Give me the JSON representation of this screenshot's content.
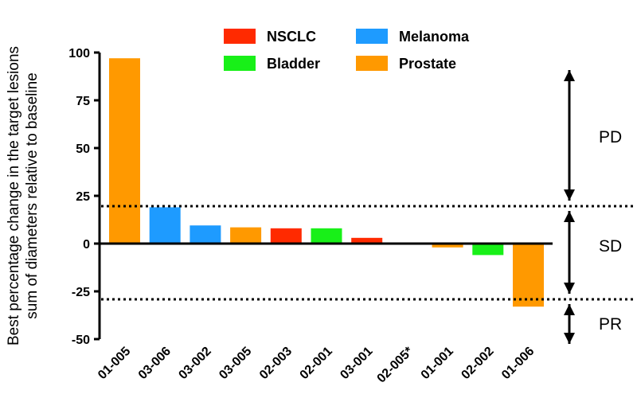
{
  "chart_data": {
    "type": "bar",
    "ylabel": "Best percentage change in the target lesions",
    "ylabel2": "sum of diameters relative to baseline",
    "yticks": [
      100,
      75,
      50,
      25,
      0,
      -25,
      -50
    ],
    "ytick_labels": [
      "100",
      "75",
      "50",
      "25",
      "0",
      "-25",
      "-50"
    ],
    "ylim": [
      -50,
      100
    ],
    "categories": [
      "01-005",
      "03-006",
      "03-002",
      "03-005",
      "02-003",
      "02-001",
      "03-001",
      "02-005*",
      "01-001",
      "02-002",
      "01-006"
    ],
    "values": [
      97,
      19,
      9.5,
      8.5,
      8,
      8,
      3,
      0,
      -2,
      -6,
      -33
    ],
    "groups": [
      "Prostate",
      "Melanoma",
      "Melanoma",
      "Prostate",
      "NSCLC",
      "Bladder",
      "NSCLC",
      "Prostate",
      "Prostate",
      "Bladder",
      "Prostate"
    ],
    "legend": [
      {
        "name": "NSCLC",
        "color": "#ff2a00"
      },
      {
        "name": "Melanoma",
        "color": "#1e9bff"
      },
      {
        "name": "Bladder",
        "color": "#18f018"
      },
      {
        "name": "Prostate",
        "color": "#ff9900"
      }
    ],
    "thresholds": [
      20,
      -30
    ],
    "zones": [
      {
        "label": "PD",
        "from": 20,
        "to": 100
      },
      {
        "label": "SD",
        "from": -30,
        "to": 20
      },
      {
        "label": "PR",
        "from": -50,
        "to": -30
      }
    ],
    "grid": false,
    "legend_position": "top-center"
  }
}
